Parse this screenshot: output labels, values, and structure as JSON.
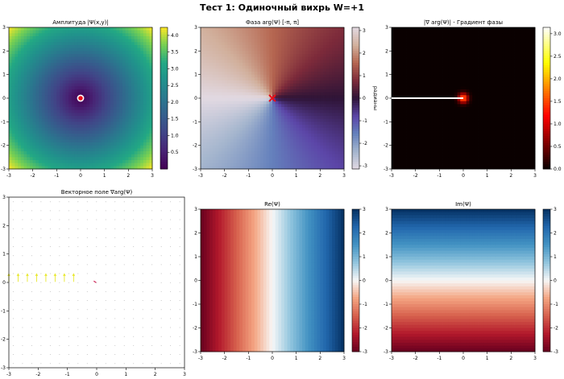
{
  "figure": {
    "suptitle": "Тест 1: Одиночный вихрь W=+1"
  },
  "chart_data": [
    {
      "id": "amp",
      "type": "heatmap",
      "field": "amplitude",
      "colormap": "viridis",
      "title": "Амплитуда |Ψ(x,y)|",
      "xlim": [
        -3,
        3
      ],
      "ylim": [
        -3,
        3
      ],
      "xticks": [
        -3,
        -2,
        -1,
        0,
        1,
        2,
        3
      ],
      "yticks": [
        -3,
        -2,
        -1,
        0,
        1,
        2,
        3
      ],
      "colorbar": {
        "range": [
          0.0,
          4.24
        ],
        "ticks": [
          0.5,
          1.0,
          1.5,
          2.0,
          2.5,
          3.0,
          3.5,
          4.0
        ],
        "label": ""
      },
      "marker": {
        "x": 0,
        "y": 0,
        "style": "circle"
      }
    },
    {
      "id": "phase",
      "type": "heatmap",
      "field": "phase",
      "colormap": "twilight",
      "title": "Фаза arg(Ψ) [-π, π]",
      "xlim": [
        -3,
        3
      ],
      "ylim": [
        -3,
        3
      ],
      "xticks": [
        -3,
        -2,
        -1,
        0,
        1,
        2,
        3
      ],
      "yticks": [
        -3,
        -2,
        -1,
        0,
        1,
        2,
        3
      ],
      "colorbar": {
        "range": [
          -3.14,
          3.14
        ],
        "ticks": [
          -3,
          -2,
          -1,
          0,
          1,
          2,
          3
        ],
        "label": "радианы"
      },
      "marker": {
        "x": 0,
        "y": 0,
        "style": "x"
      }
    },
    {
      "id": "grad",
      "type": "heatmap",
      "field": "gradient",
      "colormap": "hot",
      "title": "|∇ arg(Ψ)| - Градиент фазы",
      "xlim": [
        -3,
        3
      ],
      "ylim": [
        -3,
        3
      ],
      "xticks": [
        -3,
        -2,
        -1,
        0,
        1,
        2,
        3
      ],
      "yticks": [
        -3,
        -2,
        -1,
        0,
        1,
        2,
        3
      ],
      "colorbar": {
        "range": [
          0.0,
          3.14
        ],
        "ticks": [
          0.0,
          0.5,
          1.0,
          1.5,
          2.0,
          2.5,
          3.0
        ],
        "label": ""
      },
      "branch_cut": {
        "x_from": -3,
        "x_to": 0,
        "y": 0
      }
    },
    {
      "id": "quiver",
      "type": "quiver",
      "field": "grad_vector",
      "title": "Векторное поле ∇arg(Ψ)",
      "xlim": [
        -3,
        3
      ],
      "ylim": [
        -3,
        3
      ],
      "xticks": [
        -3,
        -2,
        -1,
        0,
        1,
        2,
        3
      ],
      "yticks": [
        -3,
        -2,
        -1,
        0,
        1,
        2,
        3
      ],
      "grid_step": 0.316,
      "highlight_row": {
        "y": 0.16,
        "x_from": -3.0,
        "x_to": -0.5,
        "dy": 0.28,
        "color": "#e8e830"
      },
      "center_arrow": {
        "x": -0.1,
        "y": 0.05,
        "color": "#cc2255"
      }
    },
    {
      "id": "re",
      "type": "heatmap",
      "field": "real",
      "colormap": "RdBu",
      "title": "Re(Ψ)",
      "xlim": [
        -3,
        3
      ],
      "ylim": [
        -3,
        3
      ],
      "xticks": [
        -3,
        -2,
        -1,
        0,
        1,
        2,
        3
      ],
      "yticks": [
        -3,
        -2,
        -1,
        0,
        1,
        2,
        3
      ],
      "colorbar": {
        "range": [
          -3.0,
          3.0
        ],
        "ticks": [
          -3,
          -2,
          -1,
          0,
          1,
          2,
          3
        ],
        "label": ""
      }
    },
    {
      "id": "im",
      "type": "heatmap",
      "field": "imag",
      "colormap": "RdBu",
      "title": "Im(Ψ)",
      "xlim": [
        -3,
        3
      ],
      "ylim": [
        -3,
        3
      ],
      "xticks": [
        -3,
        -2,
        -1,
        0,
        1,
        2,
        3
      ],
      "yticks": [
        -3,
        -2,
        -1,
        0,
        1,
        2,
        3
      ],
      "colorbar": {
        "range": [
          -3.0,
          3.0
        ],
        "ticks": [
          -3,
          -2,
          -1,
          0,
          1,
          2,
          3
        ],
        "label": ""
      }
    }
  ]
}
